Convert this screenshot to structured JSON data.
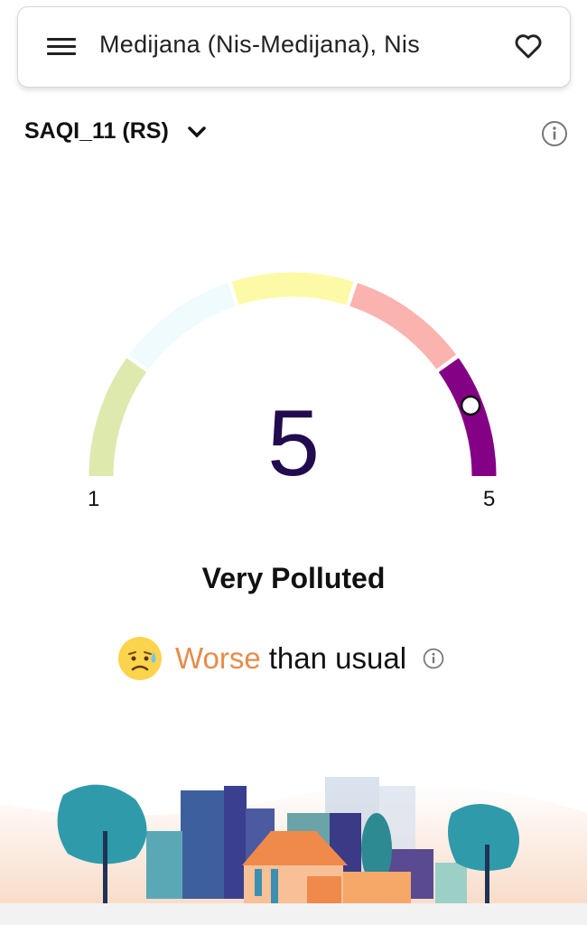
{
  "header": {
    "location": "Medijana (Nis-Medijana), Nis",
    "menu_icon": "hamburger-icon",
    "favorite_icon": "heart-icon"
  },
  "index_selector": {
    "label": "SAQI_11 (RS)",
    "icon": "chevron-down-icon"
  },
  "info_icon": "info-icon",
  "gauge": {
    "value": "5",
    "min_label": "1",
    "max_label": "5",
    "category": "Very Polluted",
    "segment_colors": [
      "#dde9ad",
      "#effbfd",
      "#fdfaa7",
      "#fbb3b0",
      "#840084"
    ],
    "marker_position": 0.88,
    "value_color": "#220b4f"
  },
  "trend": {
    "emoji": "sad-sweat-face",
    "highlight": "Worse",
    "rest": "than usual",
    "highlight_color": "#e98b4c"
  }
}
